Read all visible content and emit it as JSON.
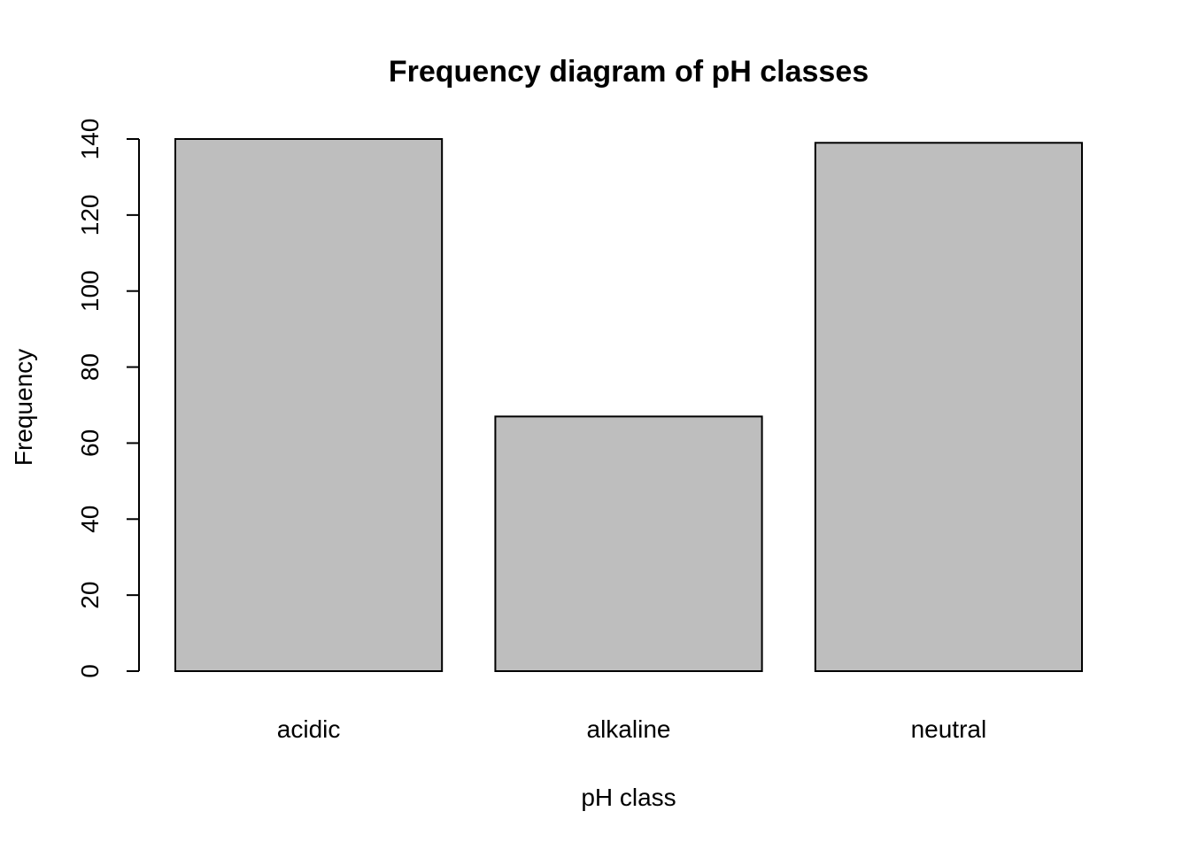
{
  "chart_data": {
    "type": "bar",
    "title": "Frequency diagram of pH classes",
    "xlabel": "pH class",
    "ylabel": "Frequency",
    "categories": [
      "acidic",
      "alkaline",
      "neutral"
    ],
    "values": [
      140,
      67,
      139
    ],
    "ylim": [
      0,
      140
    ],
    "yticks": [
      0,
      20,
      40,
      60,
      80,
      100,
      120,
      140
    ],
    "ytick_labels": [
      "0",
      "20",
      "40",
      "60",
      "80",
      "100",
      "120",
      "140"
    ],
    "bar_color": "#bebebe",
    "grid": false,
    "legend": "none"
  }
}
